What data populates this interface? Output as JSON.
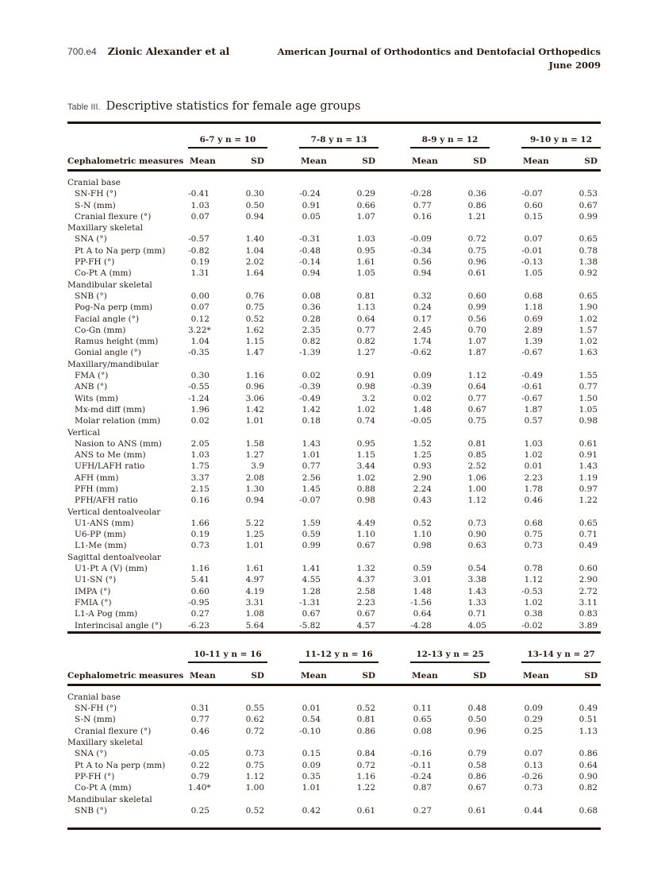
{
  "colors": {
    "ink": "#2b1b10",
    "rule": "#1e140a",
    "background": "#ffffff"
  },
  "page_header": {
    "page_number": "700.e4",
    "authors": "Zionic Alexander et al",
    "journal_name": "American Journal of Orthodontics and Dentofacial Orthopedics",
    "journal_date": "June 2009"
  },
  "table_title": {
    "label": "Table III.",
    "text": "Descriptive statistics for female age groups"
  },
  "table_meta": {
    "measures_header": "Cephalometric measures",
    "subcolumns": [
      "Mean",
      "SD"
    ]
  },
  "tables": [
    {
      "groups": [
        "6-7 y n = 10",
        "7-8 y n = 13",
        "8-9 y n = 12",
        "9-10 y n = 12"
      ],
      "rows": [
        {
          "type": "section",
          "label": "Cranial base"
        },
        {
          "type": "data",
          "label": "SN-FH (°)",
          "values": [
            "-0.41",
            "0.30",
            "-0.24",
            "0.29",
            "-0.28",
            "0.36",
            "-0.07",
            "0.53"
          ]
        },
        {
          "type": "data",
          "label": "S-N (mm)",
          "values": [
            "1.03",
            "0.50",
            "0.91",
            "0.66",
            "0.77",
            "0.86",
            "0.60",
            "0.67"
          ]
        },
        {
          "type": "data",
          "label": "Cranial flexure (°)",
          "values": [
            "0.07",
            "0.94",
            "0.05",
            "1.07",
            "0.16",
            "1.21",
            "0.15",
            "0.99"
          ]
        },
        {
          "type": "section",
          "label": "Maxillary skeletal"
        },
        {
          "type": "data",
          "label": "SNA (°)",
          "values": [
            "-0.57",
            "1.40",
            "-0.31",
            "1.03",
            "-0.09",
            "0.72",
            "0.07",
            "0.65"
          ]
        },
        {
          "type": "data",
          "label": "Pt A to Na perp (mm)",
          "values": [
            "-0.82",
            "1.04",
            "-0.48",
            "0.95",
            "-0.34",
            "0.75",
            "-0.01",
            "0.78"
          ]
        },
        {
          "type": "data",
          "label": "PP-FH (°)",
          "values": [
            "0.19",
            "2.02",
            "-0.14",
            "1.61",
            "0.56",
            "0.96",
            "-0.13",
            "1.38"
          ]
        },
        {
          "type": "data",
          "label": "Co-Pt A (mm)",
          "values": [
            "1.31",
            "1.64",
            "0.94",
            "1.05",
            "0.94",
            "0.61",
            "1.05",
            "0.92"
          ]
        },
        {
          "type": "section",
          "label": "Mandibular skeletal"
        },
        {
          "type": "data",
          "label": "SNB (°)",
          "values": [
            "0.00",
            "0.76",
            "0.08",
            "0.81",
            "0.32",
            "0.60",
            "0.68",
            "0.65"
          ]
        },
        {
          "type": "data",
          "label": "Pog-Na perp (mm)",
          "values": [
            "0.07",
            "0.75",
            "0.36",
            "1.13",
            "0.24",
            "0.99",
            "1.18",
            "1.90"
          ]
        },
        {
          "type": "data",
          "label": "Facial angle (°)",
          "values": [
            "0.12",
            "0.52",
            "0.28",
            "0.64",
            "0.17",
            "0.56",
            "0.69",
            "1.02"
          ]
        },
        {
          "type": "data",
          "label": "Co-Gn (mm)",
          "values": [
            "3.22*",
            "1.62",
            "2.35",
            "0.77",
            "2.45",
            "0.70",
            "2.89",
            "1.57"
          ]
        },
        {
          "type": "data",
          "label": "Ramus height (mm)",
          "values": [
            "1.04",
            "1.15",
            "0.82",
            "0.82",
            "1.74",
            "1.07",
            "1.39",
            "1.02"
          ]
        },
        {
          "type": "data",
          "label": "Gonial angle (°)",
          "values": [
            "-0.35",
            "1.47",
            "-1.39",
            "1.27",
            "-0.62",
            "1.87",
            "-0.67",
            "1.63"
          ]
        },
        {
          "type": "section",
          "label": "Maxillary/mandibular"
        },
        {
          "type": "data",
          "label": "FMA (°)",
          "values": [
            "0.30",
            "1.16",
            "0.02",
            "0.91",
            "0.09",
            "1.12",
            "-0.49",
            "1.55"
          ]
        },
        {
          "type": "data",
          "label": "ANB (°)",
          "values": [
            "-0.55",
            "0.96",
            "-0.39",
            "0.98",
            "-0.39",
            "0.64",
            "-0.61",
            "0.77"
          ]
        },
        {
          "type": "data",
          "label": "Wits (mm)",
          "values": [
            "-1.24",
            "3.06",
            "-0.49",
            "3.2",
            "0.02",
            "0.77",
            "-0.67",
            "1.50"
          ]
        },
        {
          "type": "data",
          "label": "Mx-md diff (mm)",
          "values": [
            "1.96",
            "1.42",
            "1.42",
            "1.02",
            "1.48",
            "0.67",
            "1.87",
            "1.05"
          ]
        },
        {
          "type": "data",
          "label": "Molar relation (mm)",
          "values": [
            "0.02",
            "1.01",
            "0.18",
            "0.74",
            "-0.05",
            "0.75",
            "0.57",
            "0.98"
          ]
        },
        {
          "type": "section",
          "label": "Vertical"
        },
        {
          "type": "data",
          "label": "Nasion to ANS (mm)",
          "values": [
            "2.05",
            "1.58",
            "1.43",
            "0.95",
            "1.52",
            "0.81",
            "1.03",
            "0.61"
          ]
        },
        {
          "type": "data",
          "label": "ANS to Me (mm)",
          "values": [
            "1.03",
            "1.27",
            "1.01",
            "1.15",
            "1.25",
            "0.85",
            "1.02",
            "0.91"
          ]
        },
        {
          "type": "data",
          "label": "UFH/LAFH ratio",
          "values": [
            "1.75",
            "3.9",
            "0.77",
            "3.44",
            "0.93",
            "2.52",
            "0.01",
            "1.43"
          ]
        },
        {
          "type": "data",
          "label": "AFH (mm)",
          "values": [
            "3.37",
            "2.08",
            "2.56",
            "1.02",
            "2.90",
            "1.06",
            "2.23",
            "1.19"
          ]
        },
        {
          "type": "data",
          "label": "PFH (mm)",
          "values": [
            "2.15",
            "1.30",
            "1.45",
            "0.88",
            "2.24",
            "1.00",
            "1.78",
            "0.97"
          ]
        },
        {
          "type": "data",
          "label": "PFH/AFH ratio",
          "values": [
            "0.16",
            "0.94",
            "-0.07",
            "0.98",
            "0.43",
            "1.12",
            "0.46",
            "1.22"
          ]
        },
        {
          "type": "section",
          "label": "Vertical dentoalveolar"
        },
        {
          "type": "data",
          "label": "U1-ANS (mm)",
          "values": [
            "1.66",
            "5.22",
            "1.59",
            "4.49",
            "0.52",
            "0.73",
            "0.68",
            "0.65"
          ]
        },
        {
          "type": "data",
          "label": "U6-PP (mm)",
          "values": [
            "0.19",
            "1.25",
            "0.59",
            "1.10",
            "1.10",
            "0.90",
            "0.75",
            "0.71"
          ]
        },
        {
          "type": "data",
          "label": "L1-Me (mm)",
          "values": [
            "0.73",
            "1.01",
            "0.99",
            "0.67",
            "0.98",
            "0.63",
            "0.73",
            "0.49"
          ]
        },
        {
          "type": "section",
          "label": "Sagittal dentoalveolar"
        },
        {
          "type": "data",
          "label": "U1-Pt A (V) (mm)",
          "values": [
            "1.16",
            "1.61",
            "1.41",
            "1.32",
            "0.59",
            "0.54",
            "0.78",
            "0.60"
          ]
        },
        {
          "type": "data",
          "label": "U1-SN (°)",
          "values": [
            "5.41",
            "4.97",
            "4.55",
            "4.37",
            "3.01",
            "3.38",
            "1.12",
            "2.90"
          ]
        },
        {
          "type": "data",
          "label": "IMPA (°)",
          "values": [
            "0.60",
            "4.19",
            "1.28",
            "2.58",
            "1.48",
            "1.43",
            "-0.53",
            "2.72"
          ]
        },
        {
          "type": "data",
          "label": "FMIA (°)",
          "values": [
            "-0.95",
            "3.31",
            "-1.31",
            "2.23",
            "-1.56",
            "1.33",
            "1.02",
            "3.11"
          ]
        },
        {
          "type": "data",
          "label": "L1-A Pog (mm)",
          "values": [
            "0.27",
            "1.08",
            "0.67",
            "0.67",
            "0.64",
            "0.71",
            "0.38",
            "0.83"
          ]
        },
        {
          "type": "data",
          "label": "Interincisal angle (°)",
          "values": [
            "-6.23",
            "5.64",
            "-5.82",
            "4.57",
            "-4.28",
            "4.05",
            "-0.02",
            "3.89"
          ]
        }
      ]
    },
    {
      "groups": [
        "10-11 y n = 16",
        "11-12 y n = 16",
        "12-13 y n = 25",
        "13-14 y n = 27"
      ],
      "rows": [
        {
          "type": "section",
          "label": "Cranial base"
        },
        {
          "type": "data",
          "label": "SN-FH (°)",
          "values": [
            "0.31",
            "0.55",
            "0.01",
            "0.52",
            "0.11",
            "0.48",
            "0.09",
            "0.49"
          ]
        },
        {
          "type": "data",
          "label": "S-N (mm)",
          "values": [
            "0.77",
            "0.62",
            "0.54",
            "0.81",
            "0.65",
            "0.50",
            "0.29",
            "0.51"
          ]
        },
        {
          "type": "data",
          "label": "Cranial flexure (°)",
          "values": [
            "0.46",
            "0.72",
            "-0.10",
            "0.86",
            "0.08",
            "0.96",
            "0.25",
            "1.13"
          ]
        },
        {
          "type": "section",
          "label": "Maxillary skeletal"
        },
        {
          "type": "data",
          "label": "SNA (°)",
          "values": [
            "-0.05",
            "0.73",
            "0.15",
            "0.84",
            "-0.16",
            "0.79",
            "0.07",
            "0.86"
          ]
        },
        {
          "type": "data",
          "label": "Pt A to Na perp (mm)",
          "values": [
            "0.22",
            "0.75",
            "0.09",
            "0.72",
            "-0.11",
            "0.58",
            "0.13",
            "0.64"
          ]
        },
        {
          "type": "data",
          "label": "PP-FH (°)",
          "values": [
            "0.79",
            "1.12",
            "0.35",
            "1.16",
            "-0.24",
            "0.86",
            "-0.26",
            "0.90"
          ]
        },
        {
          "type": "data",
          "label": "Co-Pt A (mm)",
          "values": [
            "1.40*",
            "1.00",
            "1.01",
            "1.22",
            "0.87",
            "0.67",
            "0.73",
            "0.82"
          ]
        },
        {
          "type": "section",
          "label": "Mandibular skeletal"
        },
        {
          "type": "data",
          "label": "SNB (°)",
          "values": [
            "0.25",
            "0.52",
            "0.42",
            "0.61",
            "0.27",
            "0.61",
            "0.44",
            "0.68"
          ]
        }
      ]
    }
  ]
}
